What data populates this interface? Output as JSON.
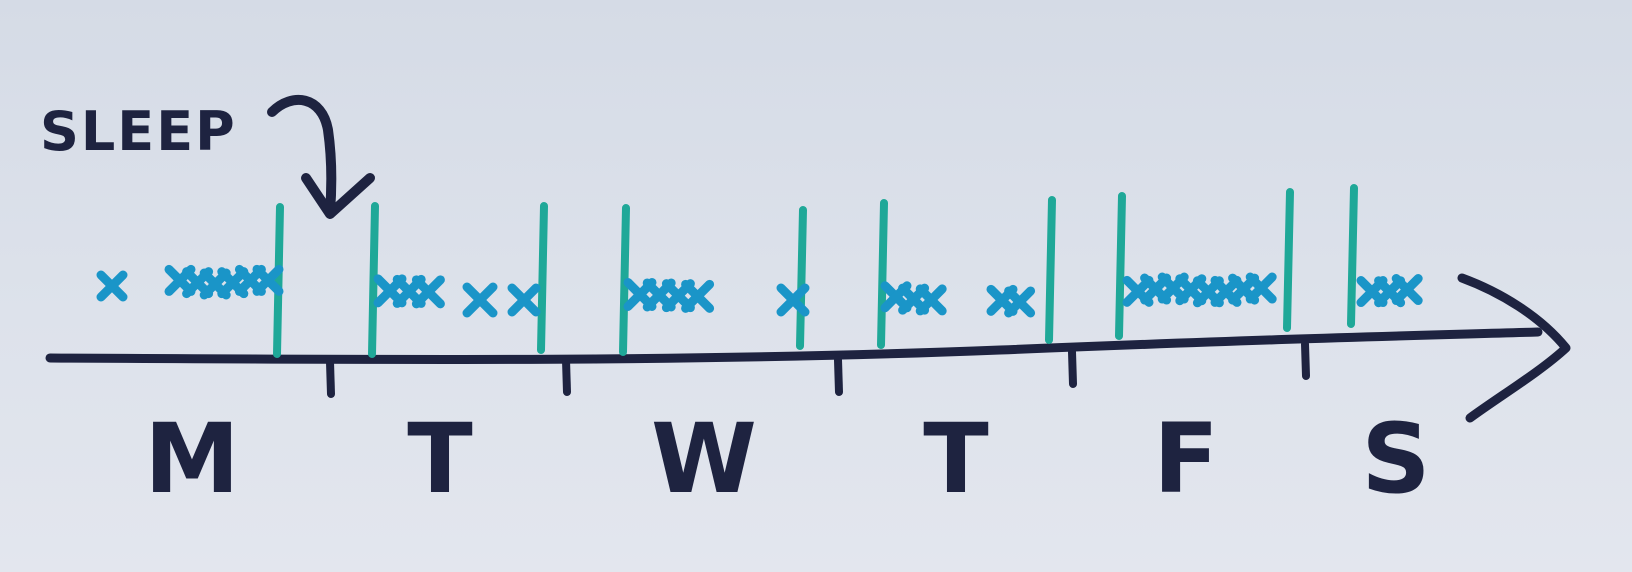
{
  "annotation": {
    "label": "SLEEP"
  },
  "timeline": {
    "days": [
      "M",
      "T",
      "W",
      "T",
      "F",
      "S"
    ]
  },
  "colors": {
    "ink": "#1e2340",
    "sleep_line": "#1fa898",
    "activity_mark": "#1a95c8",
    "paper": "#dce1ea"
  }
}
